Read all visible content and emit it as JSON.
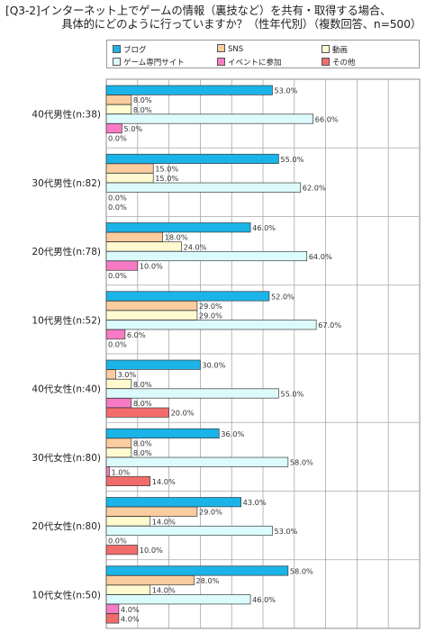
{
  "title": {
    "line1": "[Q3-2]インターネット上でゲームの情報（裏技など）を共有・取得する場合、",
    "line2": "具体的にどのように行っていますか？（性年代別）（複数回答、n=500）"
  },
  "chart_data": {
    "type": "bar",
    "orientation": "horizontal",
    "title": "[Q3-2]インターネット上でゲームの情報（裏技など）を共有・取得する場合、具体的にどのように行っていますか？（性年代別）（複数回答、n=500）",
    "categories": [
      "40代男性(n:38)",
      "30代男性(n:82)",
      "20代男性(n:78)",
      "10代男性(n:52)",
      "40代女性(n:40)",
      "30代女性(n:80)",
      "20代女性(n:80)",
      "10代女性(n:50)"
    ],
    "value_suffix": "%",
    "xlim": [
      0,
      100
    ],
    "grid": true,
    "legend_position": "top",
    "series": [
      {
        "name": "ブログ",
        "color": "#1ab4e8",
        "values": [
          53.0,
          55.0,
          46.0,
          52.0,
          30.0,
          36.0,
          43.0,
          58.0
        ]
      },
      {
        "name": "SNS",
        "color": "#fbcc9e",
        "values": [
          8.0,
          15.0,
          18.0,
          29.0,
          3.0,
          8.0,
          29.0,
          28.0
        ]
      },
      {
        "name": "動画",
        "color": "#fffad0",
        "values": [
          8.0,
          15.0,
          24.0,
          29.0,
          8.0,
          8.0,
          14.0,
          14.0
        ]
      },
      {
        "name": "ゲーム専門サイト",
        "color": "#dcfbfd",
        "values": [
          66.0,
          62.0,
          64.0,
          67.0,
          55.0,
          58.0,
          53.0,
          46.0
        ]
      },
      {
        "name": "イベントに参加",
        "color": "#f77bc4",
        "values": [
          5.0,
          0.0,
          10.0,
          6.0,
          8.0,
          1.0,
          0.0,
          4.0
        ]
      },
      {
        "name": "その他",
        "color": "#f26c6c",
        "values": [
          0.0,
          0.0,
          0.0,
          0.0,
          20.0,
          14.0,
          10.0,
          4.0
        ]
      }
    ]
  }
}
